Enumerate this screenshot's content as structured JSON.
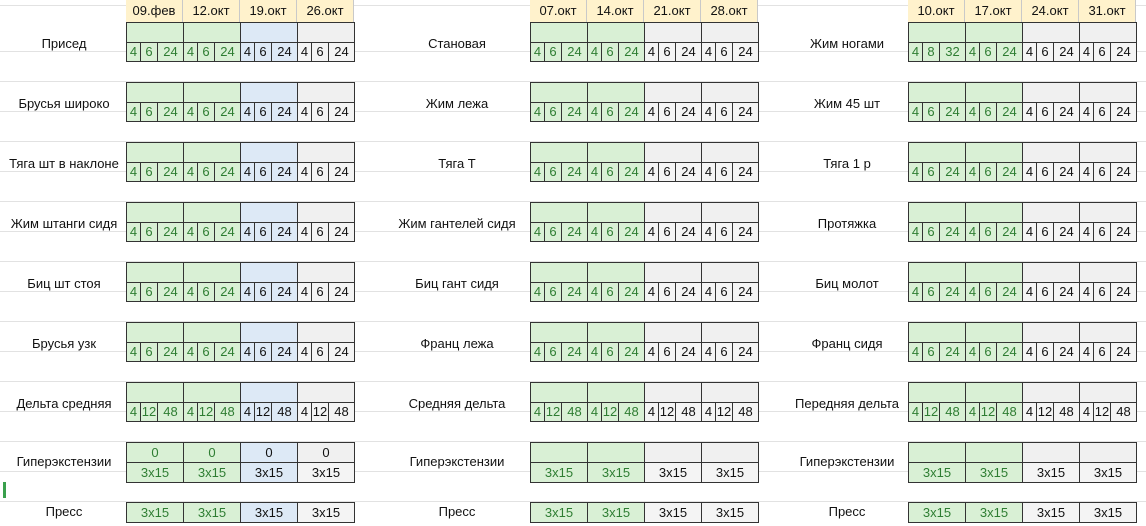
{
  "colors": {
    "green": "#d9f0d5",
    "blue": "#dde9f6",
    "header": "#fff2cc",
    "grey": "#f0f0f0"
  },
  "blocks": [
    {
      "dates": [
        "09.фев",
        "12.окт",
        "19.окт",
        "26.окт"
      ],
      "week_colors": [
        "g",
        "g",
        "b",
        "w"
      ],
      "exercises": [
        "Присед",
        "Брусья широко",
        "Тяга шт в наклоне",
        "Жим штанги сидя",
        "Биц шт стоя",
        "Брусья узк",
        "Дельта средняя",
        "Гиперэкстензии",
        "Пресс"
      ],
      "rows": [
        [
          [
            "4",
            "6",
            "24"
          ],
          [
            "4",
            "6",
            "24"
          ],
          [
            "4",
            "6",
            "24"
          ],
          [
            "4",
            "6",
            "24"
          ]
        ],
        [
          [
            "4",
            "6",
            "24"
          ],
          [
            "4",
            "6",
            "24"
          ],
          [
            "4",
            "6",
            "24"
          ],
          [
            "4",
            "6",
            "24"
          ]
        ],
        [
          [
            "4",
            "6",
            "24"
          ],
          [
            "4",
            "6",
            "24"
          ],
          [
            "4",
            "6",
            "24"
          ],
          [
            "4",
            "6",
            "24"
          ]
        ],
        [
          [
            "4",
            "6",
            "24"
          ],
          [
            "4",
            "6",
            "24"
          ],
          [
            "4",
            "6",
            "24"
          ],
          [
            "4",
            "6",
            "24"
          ]
        ],
        [
          [
            "4",
            "6",
            "24"
          ],
          [
            "4",
            "6",
            "24"
          ],
          [
            "4",
            "6",
            "24"
          ],
          [
            "4",
            "6",
            "24"
          ]
        ],
        [
          [
            "4",
            "6",
            "24"
          ],
          [
            "4",
            "6",
            "24"
          ],
          [
            "4",
            "6",
            "24"
          ],
          [
            "4",
            "6",
            "24"
          ]
        ],
        [
          [
            "4",
            "12",
            "48"
          ],
          [
            "4",
            "12",
            "48"
          ],
          [
            "4",
            "12",
            "48"
          ],
          [
            "4",
            "12",
            "48"
          ]
        ]
      ],
      "hyper_top": [
        "0",
        "0",
        "0",
        "0"
      ],
      "hyper": [
        "3x15",
        "3x15",
        "3x15",
        "3x15"
      ],
      "press": [
        "3x15",
        "3x15",
        "3x15",
        "3x15"
      ]
    },
    {
      "dates": [
        "07.окт",
        "14.окт",
        "21.окт",
        "28.окт"
      ],
      "week_colors": [
        "g",
        "g",
        "w",
        "w"
      ],
      "exercises": [
        "Становая",
        "Жим лежа",
        "Тяга Т",
        "Жим гантелей сидя",
        "Биц гант сидя",
        "Франц лежа",
        "Средняя дельта",
        "Гиперэкстензии",
        "Пресс"
      ],
      "rows": [
        [
          [
            "4",
            "6",
            "24"
          ],
          [
            "4",
            "6",
            "24"
          ],
          [
            "4",
            "6",
            "24"
          ],
          [
            "4",
            "6",
            "24"
          ]
        ],
        [
          [
            "4",
            "6",
            "24"
          ],
          [
            "4",
            "6",
            "24"
          ],
          [
            "4",
            "6",
            "24"
          ],
          [
            "4",
            "6",
            "24"
          ]
        ],
        [
          [
            "4",
            "6",
            "24"
          ],
          [
            "4",
            "6",
            "24"
          ],
          [
            "4",
            "6",
            "24"
          ],
          [
            "4",
            "6",
            "24"
          ]
        ],
        [
          [
            "4",
            "6",
            "24"
          ],
          [
            "4",
            "6",
            "24"
          ],
          [
            "4",
            "6",
            "24"
          ],
          [
            "4",
            "6",
            "24"
          ]
        ],
        [
          [
            "4",
            "6",
            "24"
          ],
          [
            "4",
            "6",
            "24"
          ],
          [
            "4",
            "6",
            "24"
          ],
          [
            "4",
            "6",
            "24"
          ]
        ],
        [
          [
            "4",
            "6",
            "24"
          ],
          [
            "4",
            "6",
            "24"
          ],
          [
            "4",
            "6",
            "24"
          ],
          [
            "4",
            "6",
            "24"
          ]
        ],
        [
          [
            "4",
            "12",
            "48"
          ],
          [
            "4",
            "12",
            "48"
          ],
          [
            "4",
            "12",
            "48"
          ],
          [
            "4",
            "12",
            "48"
          ]
        ]
      ],
      "hyper_top": [
        "",
        "",
        "",
        ""
      ],
      "hyper": [
        "3x15",
        "3x15",
        "3x15",
        "3x15"
      ],
      "press": [
        "3x15",
        "3x15",
        "3x15",
        "3x15"
      ]
    },
    {
      "dates": [
        "10.окт",
        "17.окт",
        "24.окт",
        "31.окт"
      ],
      "week_colors": [
        "g",
        "g",
        "w",
        "w"
      ],
      "exercises": [
        "Жим ногами",
        "Жим 45 шт",
        "Тяга 1 р",
        "Протяжка",
        "Биц молот",
        "Франц сидя",
        "Передняя дельта",
        "Гиперэкстензии",
        "Пресс"
      ],
      "rows": [
        [
          [
            "4",
            "8",
            "32"
          ],
          [
            "4",
            "6",
            "24"
          ],
          [
            "4",
            "6",
            "24"
          ],
          [
            "4",
            "6",
            "24"
          ]
        ],
        [
          [
            "4",
            "6",
            "24"
          ],
          [
            "4",
            "6",
            "24"
          ],
          [
            "4",
            "6",
            "24"
          ],
          [
            "4",
            "6",
            "24"
          ]
        ],
        [
          [
            "4",
            "6",
            "24"
          ],
          [
            "4",
            "6",
            "24"
          ],
          [
            "4",
            "6",
            "24"
          ],
          [
            "4",
            "6",
            "24"
          ]
        ],
        [
          [
            "4",
            "6",
            "24"
          ],
          [
            "4",
            "6",
            "24"
          ],
          [
            "4",
            "6",
            "24"
          ],
          [
            "4",
            "6",
            "24"
          ]
        ],
        [
          [
            "4",
            "6",
            "24"
          ],
          [
            "4",
            "6",
            "24"
          ],
          [
            "4",
            "6",
            "24"
          ],
          [
            "4",
            "6",
            "24"
          ]
        ],
        [
          [
            "4",
            "6",
            "24"
          ],
          [
            "4",
            "6",
            "24"
          ],
          [
            "4",
            "6",
            "24"
          ],
          [
            "4",
            "6",
            "24"
          ]
        ],
        [
          [
            "4",
            "12",
            "48"
          ],
          [
            "4",
            "12",
            "48"
          ],
          [
            "4",
            "12",
            "48"
          ],
          [
            "4",
            "12",
            "48"
          ]
        ]
      ],
      "hyper_top": [
        "",
        "",
        "",
        ""
      ],
      "hyper": [
        "3x15",
        "3x15",
        "3x15",
        "3x15"
      ],
      "press": [
        "3x15",
        "3x15",
        "3x15",
        "3x15"
      ]
    }
  ]
}
